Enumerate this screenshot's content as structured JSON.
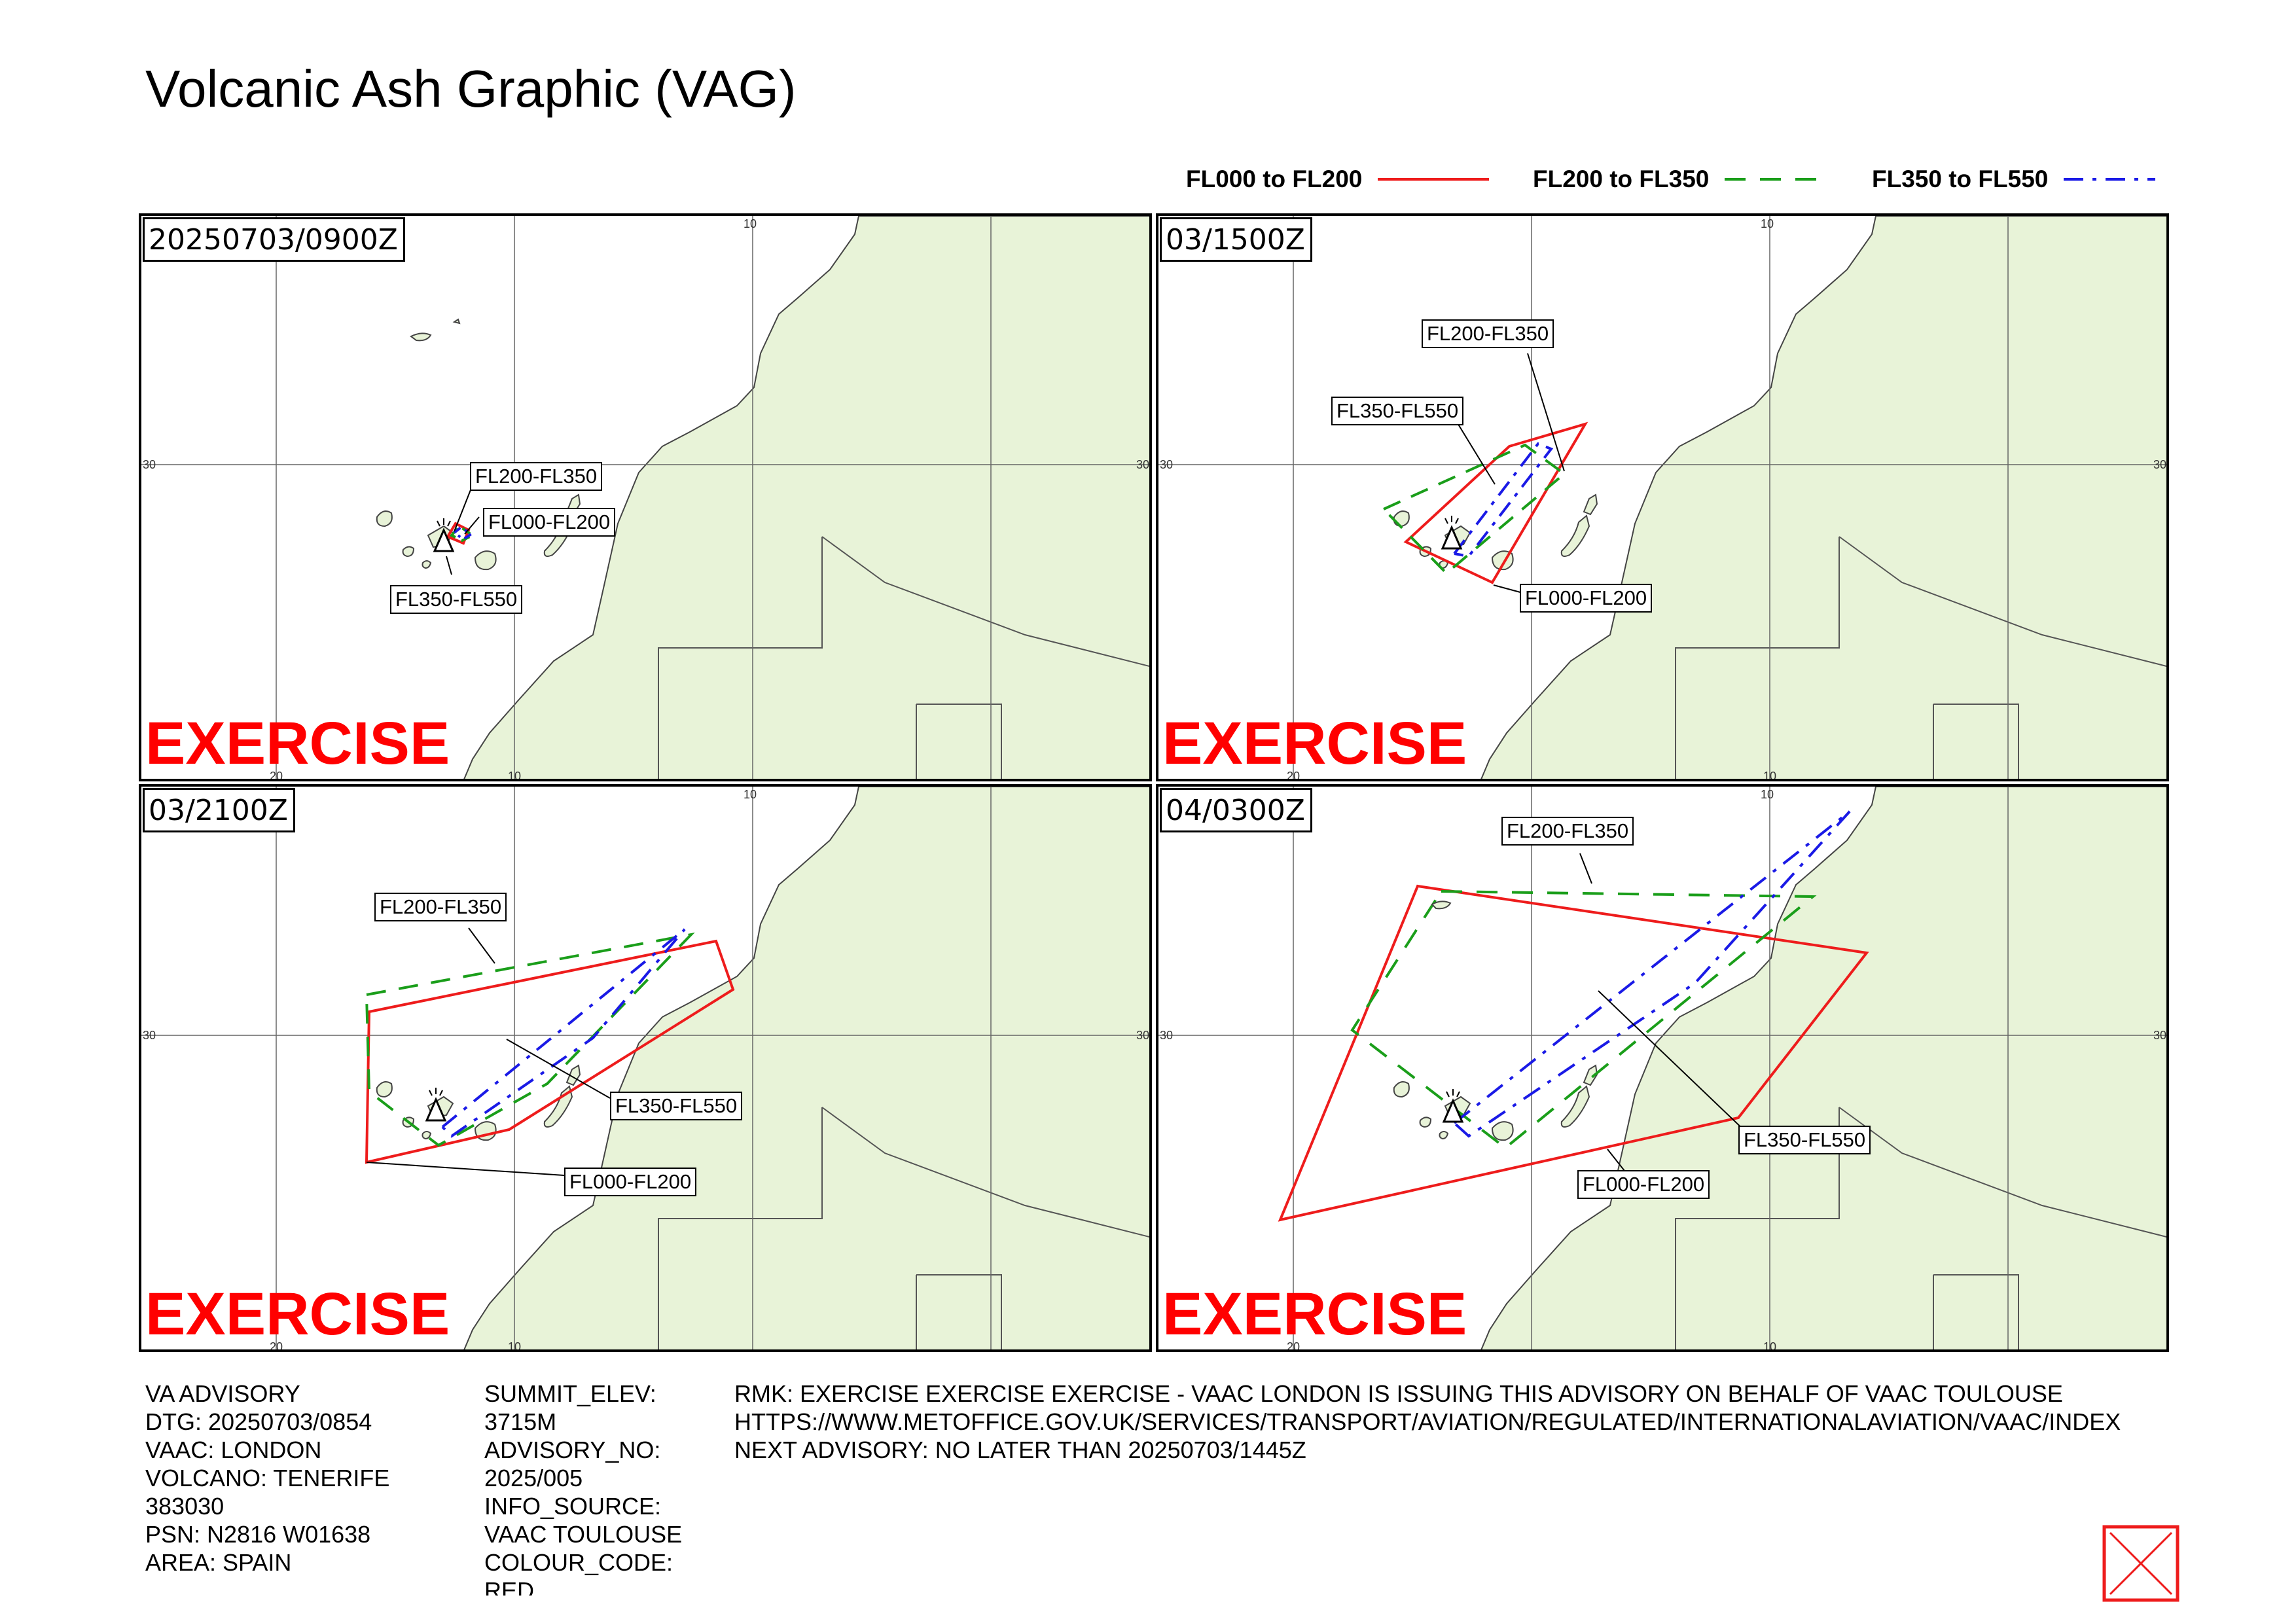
{
  "title": "Volcanic Ash Graphic (VAG)",
  "legend": [
    {
      "label": "FL000 to FL200",
      "color": "#ee1c1c",
      "style": "solid"
    },
    {
      "label": "FL200 to FL350",
      "color": "#1a9e1a",
      "style": "dashed"
    },
    {
      "label": "FL350 to FL550",
      "color": "#1a1ae6",
      "style": "dashdot"
    }
  ],
  "panels": [
    {
      "time": "20250703/0900Z",
      "labels": {
        "fl200_350": "FL200-FL350",
        "fl000_200": "FL000-FL200",
        "fl350_550": "FL350-FL550"
      },
      "watermark": "EXERCISE"
    },
    {
      "time": "03/1500Z",
      "labels": {
        "fl200_350": "FL200-FL350",
        "fl350_550": "FL350-FL550",
        "fl000_200": "FL000-FL200"
      },
      "watermark": "EXERCISE"
    },
    {
      "time": "03/2100Z",
      "labels": {
        "fl200_350": "FL200-FL350",
        "fl350_550": "FL350-FL550",
        "fl000_200": "FL000-FL200"
      },
      "watermark": "EXERCISE"
    },
    {
      "time": "04/0300Z",
      "labels": {
        "fl200_350": "FL200-FL350",
        "fl350_550": "FL350-FL550",
        "fl000_200": "FL000-FL200"
      },
      "watermark": "EXERCISE"
    }
  ],
  "map_ticks": {
    "lon_left": "20",
    "lon_right": "10",
    "lat": "30"
  },
  "info": {
    "col1": [
      "VA ADVISORY",
      "DTG: 20250703/0854",
      "VAAC: LONDON",
      "VOLCANO: TENERIFE",
      "383030",
      "PSN: N2816 W01638",
      "AREA: SPAIN"
    ],
    "col2": [
      "SUMMIT_ELEV:",
      "3715M",
      "ADVISORY_NO:",
      "2025/005",
      "INFO_SOURCE:",
      "VAAC TOULOUSE",
      "COLOUR_CODE:",
      "RED"
    ],
    "rmk": [
      "RMK: EXERCISE EXERCISE EXERCISE - VAAC LONDON IS ISSUING THIS ADVISORY ON BEHALF OF VAAC TOULOUSE",
      "HTTPS://WWW.METOFFICE.GOV.UK/SERVICES/TRANSPORT/AVIATION/REGULATED/INTERNATIONALAVIATION/VAAC/INDEX",
      "NEXT ADVISORY: NO LATER THAN 20250703/1445Z"
    ]
  },
  "colors": {
    "land": "#e8f3d8",
    "coast": "#444444",
    "grid": "#555555",
    "exercise": "#ff0000"
  }
}
